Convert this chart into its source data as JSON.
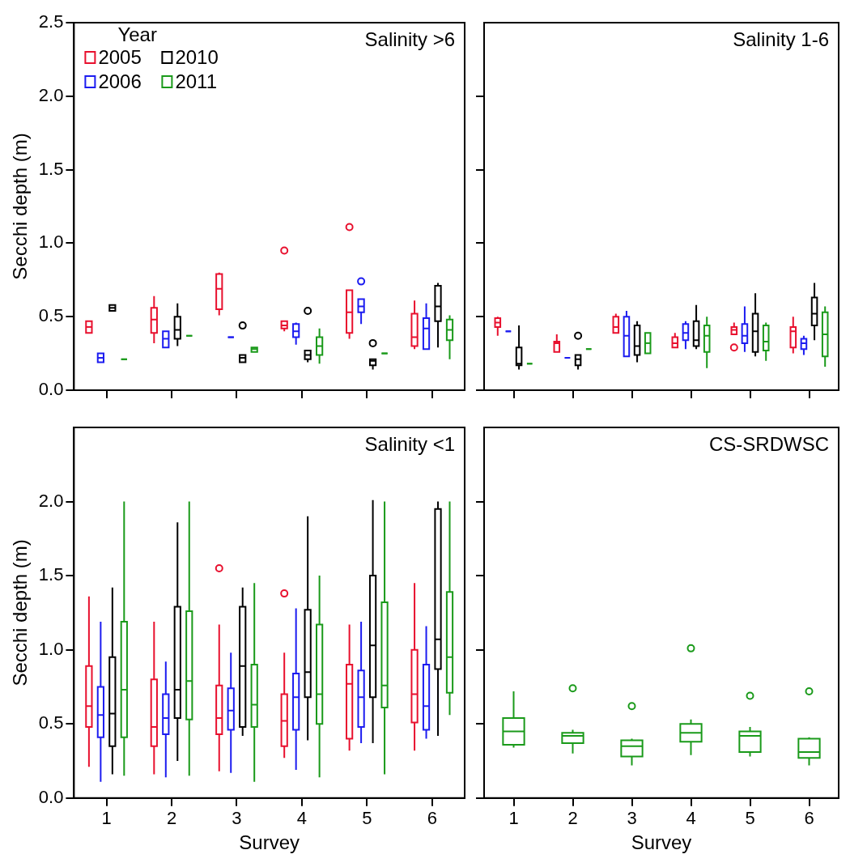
{
  "chart_data": [
    {
      "type": "box",
      "title": "Salinity >6",
      "ylabel": "Secchi depth (m)",
      "categories": [
        "1",
        "2",
        "3",
        "4",
        "5",
        "6"
      ],
      "ylim": [
        0,
        2.5
      ],
      "yticks": [
        {
          "value": 0,
          "label": "0.0"
        },
        {
          "value": 0.5,
          "label": "0.5"
        },
        {
          "value": 1,
          "label": "1.0"
        },
        {
          "value": 1.5,
          "label": "1.5"
        },
        {
          "value": 2,
          "label": "2.0"
        },
        {
          "value": 2.5,
          "label": "2.5"
        }
      ],
      "tick_labels": "y",
      "legend": "top left",
      "legend_title": "Year",
      "series": [
        {
          "name": "2005",
          "color": "#e8102e",
          "boxes": [
            {
              "low": 0.39,
              "q1": 0.39,
              "median": 0.43,
              "q3": 0.47,
              "high": 0.47
            },
            {
              "low": 0.32,
              "q1": 0.39,
              "median": 0.48,
              "q3": 0.56,
              "high": 0.64
            },
            {
              "low": 0.51,
              "q1": 0.55,
              "median": 0.69,
              "q3": 0.79,
              "high": 0.8
            },
            {
              "low": 0.4,
              "q1": 0.42,
              "median": 0.44,
              "q3": 0.47,
              "high": 0.47,
              "outliers": [
                0.95
              ]
            },
            {
              "low": 0.35,
              "q1": 0.39,
              "median": 0.53,
              "q3": 0.68,
              "high": 0.68,
              "outliers": [
                1.11
              ]
            },
            {
              "low": 0.28,
              "q1": 0.3,
              "median": 0.36,
              "q3": 0.52,
              "high": 0.61
            }
          ]
        },
        {
          "name": "2006",
          "color": "#1c1cf0",
          "boxes": [
            {
              "low": 0.19,
              "q1": 0.19,
              "median": 0.22,
              "q3": 0.25,
              "high": 0.25
            },
            {
              "low": 0.29,
              "q1": 0.29,
              "median": 0.35,
              "q3": 0.4,
              "high": 0.4
            },
            {
              "low": 0.36,
              "q1": 0.36,
              "median": 0.36,
              "q3": 0.36,
              "high": 0.36
            },
            {
              "low": 0.31,
              "q1": 0.36,
              "median": 0.4,
              "q3": 0.45,
              "high": 0.46
            },
            {
              "low": 0.45,
              "q1": 0.53,
              "median": 0.57,
              "q3": 0.62,
              "high": 0.62,
              "outliers": [
                0.74
              ]
            },
            {
              "low": 0.28,
              "q1": 0.28,
              "median": 0.42,
              "q3": 0.49,
              "high": 0.59
            }
          ]
        },
        {
          "name": "2010",
          "color": "#000000",
          "boxes": [
            {
              "low": 0.54,
              "q1": 0.54,
              "median": 0.56,
              "q3": 0.58,
              "high": 0.58
            },
            {
              "low": 0.3,
              "q1": 0.35,
              "median": 0.41,
              "q3": 0.5,
              "high": 0.59
            },
            {
              "low": 0.19,
              "q1": 0.19,
              "median": 0.22,
              "q3": 0.24,
              "high": 0.24,
              "outliers": [
                0.44
              ]
            },
            {
              "low": 0.19,
              "q1": 0.21,
              "median": 0.24,
              "q3": 0.27,
              "high": 0.27,
              "outliers": [
                0.54
              ]
            },
            {
              "low": 0.14,
              "q1": 0.17,
              "median": 0.2,
              "q3": 0.21,
              "high": 0.21,
              "outliers": [
                0.32
              ]
            },
            {
              "low": 0.29,
              "q1": 0.47,
              "median": 0.57,
              "q3": 0.71,
              "high": 0.73
            }
          ]
        },
        {
          "name": "2011",
          "color": "#1a9a1a",
          "boxes": [
            {
              "low": 0.21,
              "q1": 0.21,
              "median": 0.21,
              "q3": 0.21,
              "high": 0.21
            },
            {
              "low": 0.37,
              "q1": 0.37,
              "median": 0.37,
              "q3": 0.37,
              "high": 0.37
            },
            {
              "low": 0.26,
              "q1": 0.26,
              "median": 0.28,
              "q3": 0.29,
              "high": 0.29
            },
            {
              "low": 0.18,
              "q1": 0.24,
              "median": 0.3,
              "q3": 0.36,
              "high": 0.42
            },
            {
              "low": 0.25,
              "q1": 0.25,
              "median": 0.25,
              "q3": 0.25,
              "high": 0.25
            },
            {
              "low": 0.21,
              "q1": 0.34,
              "median": 0.41,
              "q3": 0.48,
              "high": 0.51
            }
          ]
        }
      ]
    },
    {
      "type": "box",
      "title": "Salinity 1-6",
      "categories": [
        "1",
        "2",
        "3",
        "4",
        "5",
        "6"
      ],
      "ylim": [
        0,
        2.5
      ],
      "yticks": [
        {
          "value": 0,
          "label": null
        },
        {
          "value": 0.5,
          "label": null
        },
        {
          "value": 1,
          "label": null
        },
        {
          "value": 1.5,
          "label": null
        },
        {
          "value": 2,
          "label": null
        }
      ],
      "tick_labels": false,
      "series": [
        {
          "color": "#e8102e",
          "boxes": [
            {
              "low": 0.37,
              "q1": 0.43,
              "median": 0.46,
              "q3": 0.49,
              "high": 0.5
            },
            {
              "low": 0.26,
              "q1": 0.26,
              "median": 0.32,
              "q3": 0.33,
              "high": 0.38
            },
            {
              "low": 0.39,
              "q1": 0.39,
              "median": 0.43,
              "q3": 0.5,
              "high": 0.52
            },
            {
              "low": 0.29,
              "q1": 0.29,
              "median": 0.32,
              "q3": 0.36,
              "high": 0.39
            },
            {
              "low": 0.38,
              "q1": 0.38,
              "median": 0.41,
              "q3": 0.43,
              "high": 0.46,
              "outliers": [
                0.29
              ]
            },
            {
              "low": 0.25,
              "q1": 0.29,
              "median": 0.4,
              "q3": 0.43,
              "high": 0.5
            }
          ]
        },
        {
          "color": "#1c1cf0",
          "boxes": [
            {
              "low": 0.4,
              "q1": 0.4,
              "median": 0.4,
              "q3": 0.4,
              "high": 0.4
            },
            {
              "low": 0.22,
              "q1": 0.22,
              "median": 0.22,
              "q3": 0.22,
              "high": 0.22
            },
            {
              "low": 0.23,
              "q1": 0.23,
              "median": 0.37,
              "q3": 0.5,
              "high": 0.54
            },
            {
              "low": 0.28,
              "q1": 0.34,
              "median": 0.39,
              "q3": 0.45,
              "high": 0.47
            },
            {
              "low": 0.26,
              "q1": 0.32,
              "median": 0.37,
              "q3": 0.45,
              "high": 0.57
            },
            {
              "low": 0.24,
              "q1": 0.28,
              "median": 0.32,
              "q3": 0.35,
              "high": 0.37
            }
          ]
        },
        {
          "color": "#000000",
          "boxes": [
            {
              "low": 0.14,
              "q1": 0.17,
              "median": 0.18,
              "q3": 0.29,
              "high": 0.44
            },
            {
              "low": 0.14,
              "q1": 0.17,
              "median": 0.21,
              "q3": 0.24,
              "high": 0.24,
              "outliers": [
                0.37
              ]
            },
            {
              "low": 0.19,
              "q1": 0.24,
              "median": 0.3,
              "q3": 0.44,
              "high": 0.47
            },
            {
              "low": 0.28,
              "q1": 0.3,
              "median": 0.34,
              "q3": 0.47,
              "high": 0.58
            },
            {
              "low": 0.23,
              "q1": 0.26,
              "median": 0.4,
              "q3": 0.52,
              "high": 0.66
            },
            {
              "low": 0.34,
              "q1": 0.44,
              "median": 0.52,
              "q3": 0.63,
              "high": 0.73
            }
          ]
        },
        {
          "color": "#1a9a1a",
          "boxes": [
            {
              "low": 0.18,
              "q1": 0.18,
              "median": 0.18,
              "q3": 0.18,
              "high": 0.18
            },
            {
              "low": 0.28,
              "q1": 0.28,
              "median": 0.28,
              "q3": 0.28,
              "high": 0.28
            },
            {
              "low": 0.25,
              "q1": 0.25,
              "median": 0.32,
              "q3": 0.39,
              "high": 0.39
            },
            {
              "low": 0.15,
              "q1": 0.26,
              "median": 0.37,
              "q3": 0.44,
              "high": 0.5
            },
            {
              "low": 0.2,
              "q1": 0.27,
              "median": 0.33,
              "q3": 0.44,
              "high": 0.46
            },
            {
              "low": 0.16,
              "q1": 0.23,
              "median": 0.38,
              "q3": 0.53,
              "high": 0.57
            }
          ]
        }
      ]
    },
    {
      "type": "box",
      "title": "Salinity <1",
      "ylabel": "Secchi depth (m)",
      "xlabel": "Survey",
      "categories": [
        "1",
        "2",
        "3",
        "4",
        "5",
        "6"
      ],
      "ylim": [
        0,
        2.5
      ],
      "yticks": [
        {
          "value": 0,
          "label": "0.0"
        },
        {
          "value": 0.5,
          "label": "0.5"
        },
        {
          "value": 1,
          "label": "1.0"
        },
        {
          "value": 1.5,
          "label": "1.5"
        },
        {
          "value": 2,
          "label": "2.0"
        }
      ],
      "series": [
        {
          "color": "#e8102e",
          "boxes": [
            {
              "low": 0.21,
              "q1": 0.48,
              "median": 0.62,
              "q3": 0.89,
              "high": 1.36
            },
            {
              "low": 0.16,
              "q1": 0.35,
              "median": 0.48,
              "q3": 0.8,
              "high": 1.19
            },
            {
              "low": 0.18,
              "q1": 0.43,
              "median": 0.54,
              "q3": 0.76,
              "high": 1.17,
              "outliers": [
                1.55
              ]
            },
            {
              "low": 0.27,
              "q1": 0.35,
              "median": 0.52,
              "q3": 0.7,
              "high": 0.98,
              "outliers": [
                1.38
              ]
            },
            {
              "low": 0.32,
              "q1": 0.4,
              "median": 0.77,
              "q3": 0.9,
              "high": 1.17
            },
            {
              "low": 0.32,
              "q1": 0.51,
              "median": 0.7,
              "q3": 1.0,
              "high": 1.45
            }
          ]
        },
        {
          "color": "#1c1cf0",
          "boxes": [
            {
              "low": 0.11,
              "q1": 0.41,
              "median": 0.56,
              "q3": 0.75,
              "high": 1.19
            },
            {
              "low": 0.14,
              "q1": 0.43,
              "median": 0.54,
              "q3": 0.7,
              "high": 0.92
            },
            {
              "low": 0.17,
              "q1": 0.46,
              "median": 0.59,
              "q3": 0.74,
              "high": 0.98
            },
            {
              "low": 0.19,
              "q1": 0.46,
              "median": 0.68,
              "q3": 0.84,
              "high": 1.28
            },
            {
              "low": 0.37,
              "q1": 0.48,
              "median": 0.68,
              "q3": 0.86,
              "high": 1.19
            },
            {
              "low": 0.4,
              "q1": 0.46,
              "median": 0.62,
              "q3": 0.9,
              "high": 1.16
            }
          ]
        },
        {
          "color": "#000000",
          "boxes": [
            {
              "low": 0.16,
              "q1": 0.35,
              "median": 0.57,
              "q3": 0.95,
              "high": 1.42
            },
            {
              "low": 0.25,
              "q1": 0.54,
              "median": 0.73,
              "q3": 1.29,
              "high": 1.86
            },
            {
              "low": 0.42,
              "q1": 0.48,
              "median": 0.89,
              "q3": 1.29,
              "high": 1.42
            },
            {
              "low": 0.39,
              "q1": 0.68,
              "median": 0.85,
              "q3": 1.27,
              "high": 1.9
            },
            {
              "low": 0.37,
              "q1": 0.68,
              "median": 1.03,
              "q3": 1.5,
              "high": 2.01
            },
            {
              "low": 0.42,
              "q1": 0.87,
              "median": 1.07,
              "q3": 1.95,
              "high": 2.0
            }
          ]
        },
        {
          "color": "#1a9a1a",
          "boxes": [
            {
              "low": 0.15,
              "q1": 0.41,
              "median": 0.73,
              "q3": 1.19,
              "high": 2.0
            },
            {
              "low": 0.15,
              "q1": 0.53,
              "median": 0.79,
              "q3": 1.26,
              "high": 2.0
            },
            {
              "low": 0.11,
              "q1": 0.48,
              "median": 0.63,
              "q3": 0.9,
              "high": 1.45
            },
            {
              "low": 0.14,
              "q1": 0.5,
              "median": 0.7,
              "q3": 1.17,
              "high": 1.5
            },
            {
              "low": 0.16,
              "q1": 0.61,
              "median": 0.76,
              "q3": 1.32,
              "high": 2.0
            },
            {
              "low": 0.56,
              "q1": 0.71,
              "median": 0.95,
              "q3": 1.39,
              "high": 2.0
            }
          ]
        }
      ]
    },
    {
      "type": "box",
      "title": "CS-SRDWSC",
      "xlabel": "Survey",
      "categories": [
        "1",
        "2",
        "3",
        "4",
        "5",
        "6"
      ],
      "ylim": [
        0,
        2.5
      ],
      "yticks": [
        {
          "value": 0,
          "label": null
        },
        {
          "value": 0.5,
          "label": null
        },
        {
          "value": 1,
          "label": null
        },
        {
          "value": 1.5,
          "label": null
        },
        {
          "value": 2,
          "label": null
        }
      ],
      "tick_labels": "x",
      "series": [
        {
          "color": "#1a9a1a",
          "boxes": [
            {
              "low": 0.34,
              "q1": 0.36,
              "median": 0.45,
              "q3": 0.54,
              "high": 0.72
            },
            {
              "low": 0.3,
              "q1": 0.37,
              "median": 0.42,
              "q3": 0.44,
              "high": 0.46,
              "outliers": [
                0.74
              ]
            },
            {
              "low": 0.22,
              "q1": 0.28,
              "median": 0.35,
              "q3": 0.39,
              "high": 0.4,
              "outliers": [
                0.62
              ]
            },
            {
              "low": 0.29,
              "q1": 0.38,
              "median": 0.44,
              "q3": 0.5,
              "high": 0.53,
              "outliers": [
                1.01
              ]
            },
            {
              "low": 0.28,
              "q1": 0.31,
              "median": 0.42,
              "q3": 0.45,
              "high": 0.48,
              "outliers": [
                0.69
              ]
            },
            {
              "low": 0.22,
              "q1": 0.27,
              "median": 0.31,
              "q3": 0.4,
              "high": 0.41,
              "outliers": [
                0.72
              ]
            }
          ]
        }
      ]
    }
  ]
}
